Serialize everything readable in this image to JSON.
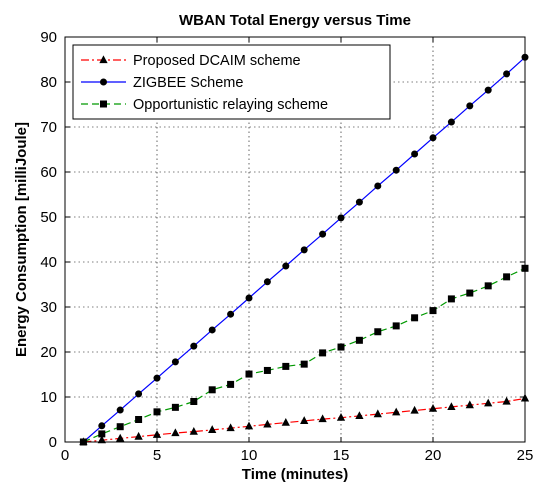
{
  "chart_data": {
    "type": "line",
    "title": "WBAN Total Energy versus Time",
    "xlabel": "Time (minutes)",
    "ylabel": "Energy Consumption [milliJoule]",
    "xlim": [
      0,
      25
    ],
    "ylim": [
      0,
      90
    ],
    "xticks": [
      0,
      5,
      10,
      15,
      20,
      25
    ],
    "yticks": [
      0,
      10,
      20,
      30,
      40,
      50,
      60,
      70,
      80,
      90
    ],
    "grid": true,
    "legend_position": "top-left",
    "x": [
      1,
      2,
      3,
      4,
      5,
      6,
      7,
      8,
      9,
      10,
      11,
      12,
      13,
      14,
      15,
      16,
      17,
      18,
      19,
      20,
      21,
      22,
      23,
      24,
      25
    ],
    "series": [
      {
        "name": "Proposed DCAIM scheme",
        "color": "#ff0000",
        "marker_color": "#000000",
        "line_style": "dashdot",
        "marker": "triangle",
        "values": [
          0,
          0.4,
          0.8,
          1.2,
          1.6,
          2.0,
          2.3,
          2.7,
          3.1,
          3.5,
          3.9,
          4.3,
          4.7,
          5.1,
          5.4,
          5.8,
          6.2,
          6.6,
          7.0,
          7.4,
          7.8,
          8.2,
          8.6,
          9.0,
          9.7
        ]
      },
      {
        "name": "ZIGBEE Scheme",
        "color": "#0000ff",
        "marker_color": "#000000",
        "line_style": "solid",
        "marker": "circle",
        "values": [
          0,
          3.6,
          7.1,
          10.7,
          14.2,
          17.8,
          21.3,
          24.9,
          28.4,
          32.0,
          35.6,
          39.1,
          42.7,
          46.2,
          49.8,
          53.3,
          56.9,
          60.4,
          64.0,
          67.6,
          71.1,
          74.7,
          78.2,
          81.8,
          85.5
        ]
      },
      {
        "name": "Opportunistic relaying scheme",
        "color": "#009900",
        "marker_color": "#000000",
        "line_style": "dashed",
        "marker": "square",
        "values": [
          0,
          1.8,
          3.4,
          5.0,
          6.7,
          7.7,
          9.0,
          11.6,
          12.8,
          15.1,
          15.9,
          16.8,
          17.3,
          19.8,
          21.1,
          22.6,
          24.5,
          25.8,
          27.6,
          29.2,
          31.8,
          33.1,
          34.7,
          36.7,
          38.6
        ]
      }
    ]
  }
}
